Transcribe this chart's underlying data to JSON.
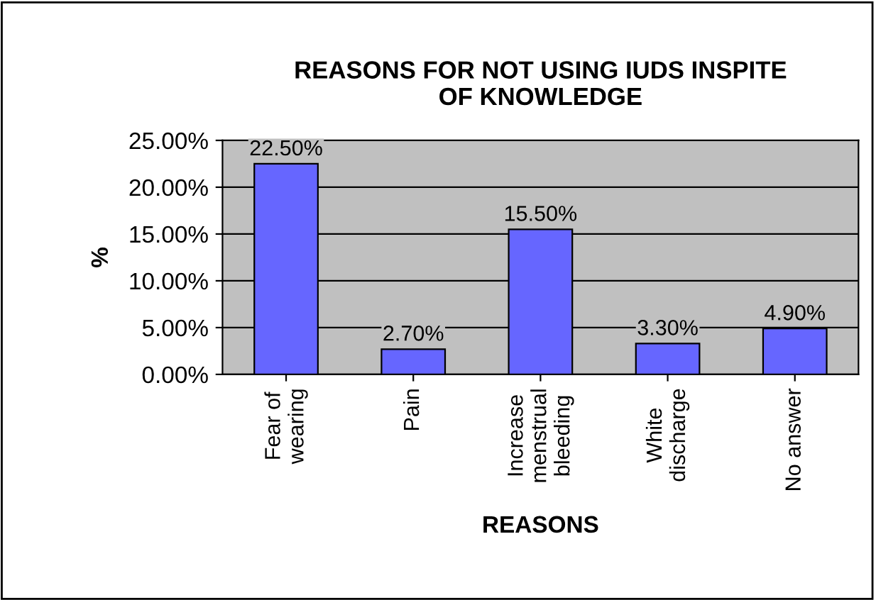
{
  "chart_data": {
    "type": "bar",
    "title": "REASONS FOR NOT USING IUDS INSPITE\nOF KNOWLEDGE",
    "xlabel": "REASONS",
    "ylabel": "%",
    "categories": [
      "Fear of\nwearing",
      "Pain",
      "Increase\nmenstrual\nbleeding",
      "White\ndischarge",
      "No answer"
    ],
    "values": [
      22.5,
      2.7,
      15.5,
      3.3,
      4.9
    ],
    "value_labels": [
      "22.50%",
      "2.70%",
      "15.50%",
      "3.30%",
      "4.90%"
    ],
    "color": "#6666ff",
    "ylim": [
      0,
      25
    ],
    "yticks": [
      {
        "value": 0,
        "label": "0.00%"
      },
      {
        "value": 5,
        "label": "5.00%"
      },
      {
        "value": 10,
        "label": "10.00%"
      },
      {
        "value": 15,
        "label": "15.00%"
      },
      {
        "value": 20,
        "label": "20.00%"
      },
      {
        "value": 25,
        "label": "25.00%"
      }
    ],
    "grid": "y",
    "legend": false
  }
}
